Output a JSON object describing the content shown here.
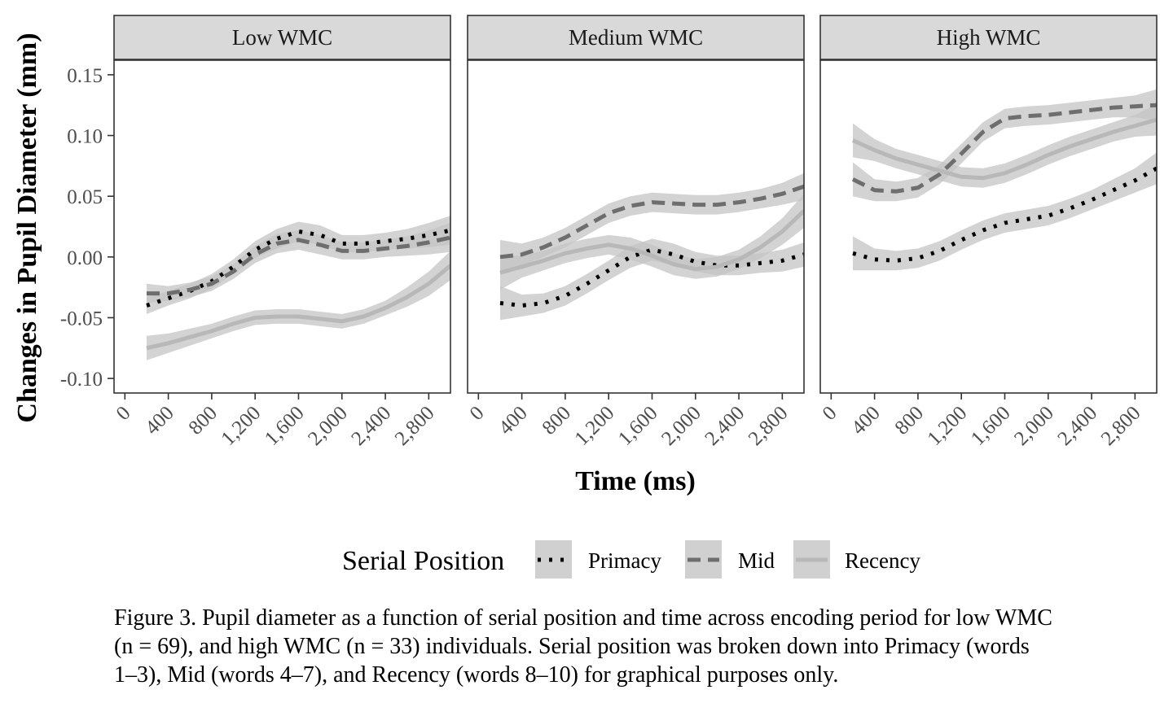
{
  "chart_data": {
    "type": "line",
    "ylabel": "Changes in Pupil Diameter (mm)",
    "xlabel": "Time (ms)",
    "xlim": [
      -100,
      3000
    ],
    "ylim": [
      -0.112,
      0.162
    ],
    "x_ticks": [
      0,
      400,
      800,
      1200,
      1600,
      2000,
      2400,
      2800
    ],
    "x_tick_labels": [
      "0",
      "400",
      "800",
      "1,200",
      "1,600",
      "2,000",
      "2,400",
      "2,800"
    ],
    "y_ticks": [
      -0.1,
      -0.05,
      0.0,
      0.05,
      0.1,
      0.15
    ],
    "y_tick_labels": [
      "-0.10",
      "-0.05",
      "0.00",
      "0.05",
      "0.10",
      "0.15"
    ],
    "grid": false,
    "legend": {
      "title": "Serial Position",
      "position": "bottom",
      "entries": [
        "Primacy",
        "Mid",
        "Recency"
      ]
    },
    "series_styles": {
      "Primacy": {
        "color": "#000000",
        "dash": "4 10",
        "width": 5
      },
      "Mid": {
        "color": "#6e6e6e",
        "dash": "16 9",
        "width": 5
      },
      "Recency": {
        "color": "#b8b8b8",
        "dash": "",
        "width": 5
      }
    },
    "ribbon_color": "#c4c4c4",
    "panels": [
      {
        "title": "Low WMC",
        "x": [
          200,
          400,
          600,
          800,
          1000,
          1200,
          1400,
          1600,
          1800,
          2000,
          2200,
          2400,
          2600,
          2800,
          3000
        ],
        "series": [
          {
            "name": "Primacy",
            "values": [
              -0.04,
              -0.034,
              -0.028,
              -0.02,
              -0.008,
              0.006,
              0.015,
              0.021,
              0.018,
              0.011,
              0.011,
              0.013,
              0.015,
              0.018,
              0.022
            ],
            "band": [
              0.007,
              0.006,
              0.006,
              0.006,
              0.006,
              0.007,
              0.008,
              0.008,
              0.008,
              0.007,
              0.007,
              0.007,
              0.008,
              0.01,
              0.012
            ]
          },
          {
            "name": "Mid",
            "values": [
              -0.03,
              -0.03,
              -0.027,
              -0.022,
              -0.012,
              0.002,
              0.011,
              0.014,
              0.01,
              0.005,
              0.005,
              0.007,
              0.009,
              0.012,
              0.016
            ],
            "band": [
              0.008,
              0.006,
              0.006,
              0.006,
              0.006,
              0.007,
              0.008,
              0.008,
              0.008,
              0.007,
              0.007,
              0.007,
              0.008,
              0.01,
              0.012
            ]
          },
          {
            "name": "Recency",
            "values": [
              -0.075,
              -0.071,
              -0.066,
              -0.061,
              -0.055,
              -0.05,
              -0.049,
              -0.049,
              -0.051,
              -0.053,
              -0.049,
              -0.042,
              -0.033,
              -0.022,
              -0.007
            ],
            "band": [
              0.01,
              0.008,
              0.007,
              0.006,
              0.006,
              0.006,
              0.006,
              0.006,
              0.006,
              0.006,
              0.006,
              0.006,
              0.008,
              0.01,
              0.012
            ]
          }
        ]
      },
      {
        "title": "Medium WMC",
        "x": [
          200,
          400,
          600,
          800,
          1000,
          1200,
          1400,
          1600,
          1800,
          2000,
          2200,
          2400,
          2600,
          2800,
          3000
        ],
        "series": [
          {
            "name": "Primacy",
            "values": [
              -0.038,
              -0.04,
              -0.038,
              -0.032,
              -0.022,
              -0.011,
              0.0,
              0.006,
              0.002,
              -0.004,
              -0.007,
              -0.007,
              -0.005,
              -0.003,
              0.002
            ],
            "band": [
              0.014,
              0.009,
              0.008,
              0.008,
              0.008,
              0.008,
              0.009,
              0.009,
              0.009,
              0.008,
              0.008,
              0.008,
              0.008,
              0.009,
              0.01
            ]
          },
          {
            "name": "Mid",
            "values": [
              0.0,
              0.002,
              0.008,
              0.016,
              0.026,
              0.036,
              0.042,
              0.045,
              0.044,
              0.043,
              0.043,
              0.045,
              0.048,
              0.052,
              0.058
            ],
            "band": [
              0.014,
              0.009,
              0.008,
              0.008,
              0.008,
              0.008,
              0.008,
              0.008,
              0.008,
              0.008,
              0.008,
              0.008,
              0.008,
              0.009,
              0.011
            ]
          },
          {
            "name": "Recency",
            "values": [
              -0.013,
              -0.008,
              -0.003,
              0.003,
              0.007,
              0.01,
              0.007,
              0.001,
              -0.006,
              -0.01,
              -0.008,
              -0.002,
              0.008,
              0.021,
              0.038
            ],
            "band": [
              0.014,
              0.009,
              0.008,
              0.008,
              0.008,
              0.008,
              0.009,
              0.009,
              0.009,
              0.008,
              0.008,
              0.008,
              0.009,
              0.011,
              0.014
            ]
          }
        ]
      },
      {
        "title": "High WMC",
        "x": [
          200,
          400,
          600,
          800,
          1000,
          1200,
          1400,
          1600,
          1800,
          2000,
          2200,
          2400,
          2600,
          2800,
          3000
        ],
        "series": [
          {
            "name": "Primacy",
            "values": [
              0.003,
              -0.002,
              -0.003,
              -0.001,
              0.005,
              0.014,
              0.022,
              0.028,
              0.031,
              0.034,
              0.04,
              0.047,
              0.055,
              0.063,
              0.073
            ],
            "band": [
              0.014,
              0.009,
              0.008,
              0.008,
              0.008,
              0.008,
              0.008,
              0.008,
              0.008,
              0.008,
              0.008,
              0.008,
              0.009,
              0.01,
              0.013
            ]
          },
          {
            "name": "Mid",
            "values": [
              0.064,
              0.055,
              0.054,
              0.057,
              0.068,
              0.085,
              0.103,
              0.114,
              0.116,
              0.117,
              0.119,
              0.121,
              0.123,
              0.124,
              0.125
            ],
            "band": [
              0.014,
              0.009,
              0.008,
              0.008,
              0.008,
              0.008,
              0.008,
              0.008,
              0.008,
              0.008,
              0.008,
              0.008,
              0.008,
              0.009,
              0.013
            ]
          },
          {
            "name": "Recency",
            "values": [
              0.096,
              0.088,
              0.081,
              0.076,
              0.071,
              0.066,
              0.065,
              0.069,
              0.076,
              0.084,
              0.091,
              0.097,
              0.103,
              0.108,
              0.113
            ],
            "band": [
              0.014,
              0.009,
              0.008,
              0.008,
              0.008,
              0.008,
              0.008,
              0.008,
              0.008,
              0.008,
              0.008,
              0.008,
              0.008,
              0.009,
              0.013
            ]
          }
        ]
      }
    ]
  },
  "caption": {
    "line1": "Figure 3. Pupil diameter as a function of serial position and time across encoding period for low WMC",
    "line2": "(n = 69), and high WMC (n = 33) individuals. Serial position was broken down into Primacy (words",
    "line3": "1–3), Mid (words 4–7), and Recency (words 8–10) for graphical purposes only."
  }
}
